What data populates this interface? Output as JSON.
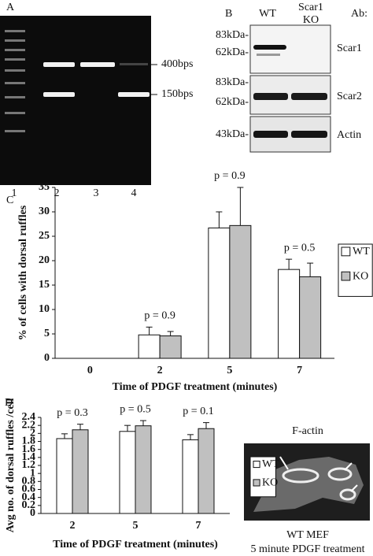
{
  "panel_a": {
    "label": "A",
    "band_labels": [
      "400bps",
      "150bps"
    ],
    "lanes": [
      "1",
      "2",
      "3",
      "4"
    ]
  },
  "panel_b": {
    "label": "B",
    "columns": [
      "WT",
      "Scar1 KO"
    ],
    "antibody_header": "Ab:",
    "blots": [
      {
        "markers": [
          "83kDa-",
          "62kDa-"
        ],
        "antibody": "Scar1"
      },
      {
        "markers": [
          "83kDa-",
          "62kDa-"
        ],
        "antibody": "Scar2"
      },
      {
        "markers": [
          "43kDa-"
        ],
        "antibody": "Actin"
      }
    ]
  },
  "chart_data": [
    {
      "type": "bar",
      "panel_label": "C",
      "categories": [
        "0",
        "2",
        "5",
        "7"
      ],
      "x_label": "Time of PDGF treatment (minutes)",
      "y_label": "% of cells with dorsal ruffles",
      "series": [
        {
          "name": "WT",
          "color": "#ffffff",
          "values": [
            0,
            4.8,
            26.7,
            18.2
          ],
          "errors": [
            0,
            1.6,
            3.3,
            2.1
          ]
        },
        {
          "name": "KO",
          "color": "#c0c0c0",
          "values": [
            0,
            4.6,
            27.2,
            16.7
          ],
          "errors": [
            0,
            0.9,
            7.8,
            2.8
          ]
        }
      ],
      "annotations": [
        null,
        "p = 0.9",
        "p = 0.9",
        "p = 0.5"
      ],
      "ylim": [
        0,
        35
      ],
      "yticks": [
        0,
        5,
        10,
        15,
        20,
        25,
        30,
        35
      ],
      "legend": "right"
    },
    {
      "type": "bar",
      "panel_label": "D",
      "categories": [
        "2",
        "5",
        "7"
      ],
      "x_label": "Time of PDGF treatment (minutes)",
      "y_label": "Avg no. of dorsal ruffles /cell",
      "series": [
        {
          "name": "WT",
          "color": "#ffffff",
          "values": [
            1.87,
            2.05,
            1.84
          ],
          "errors": [
            0.12,
            0.15,
            0.13
          ]
        },
        {
          "name": "KO",
          "color": "#c0c0c0",
          "values": [
            2.09,
            2.19,
            2.12
          ],
          "errors": [
            0.14,
            0.13,
            0.15
          ]
        }
      ],
      "annotations": [
        "p = 0.3",
        "p = 0.5",
        "p = 0.1"
      ],
      "ylim": [
        0,
        2.4
      ],
      "yticks": [
        0,
        0.2,
        0.4,
        0.6,
        0.8,
        1,
        1.2,
        1.4,
        1.6,
        1.8,
        2,
        2.2,
        2.4
      ],
      "legend": "right"
    }
  ],
  "panel_d_image": {
    "title": "F-actin",
    "caption": [
      "WT MEF",
      "5 minute PDGF treatment"
    ]
  }
}
